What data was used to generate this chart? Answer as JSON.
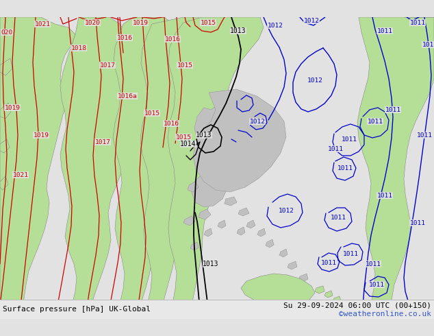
{
  "title_left": "Surface pressure [hPa] UK-Global",
  "title_right": "Su 29-09-2024 06:00 UTC (00+150)",
  "credit": "©weatheronline.co.uk",
  "bg_color": "#e2e2e2",
  "land_green": "#b5df96",
  "land_gray": "#c0c0c0",
  "sea_color": "#e2e2e2",
  "red": "#cc0000",
  "black": "#000000",
  "blue": "#0000cc",
  "footer_bg": "#e8e8e8",
  "label_fs": 7.0,
  "footer_fs": 8.0
}
